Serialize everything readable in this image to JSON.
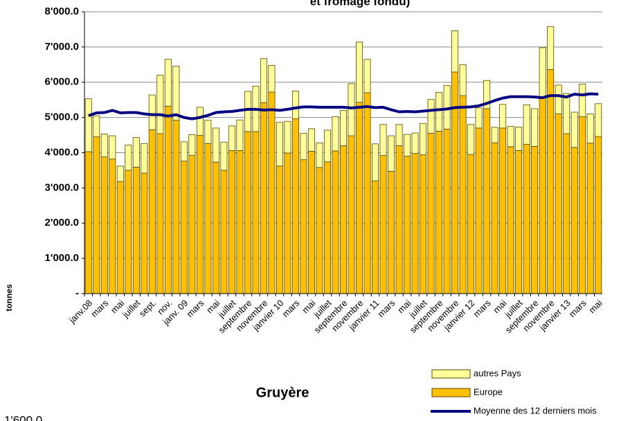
{
  "chart_data": {
    "type": "bar",
    "title": "et fromage fondu)",
    "subtitle": "Gruyère",
    "y_label": "tonnes",
    "annotation": "1'600.0",
    "stacked": true,
    "grid": true,
    "categories": [
      "janv.08",
      null,
      "mars",
      null,
      "mai",
      null,
      "juillet",
      null,
      "sept.",
      null,
      "nov.",
      null,
      "janv. 09",
      null,
      "mars",
      null,
      "mai",
      null,
      "juillet",
      null,
      "septembre",
      null,
      "novembre",
      null,
      "janvier 10",
      null,
      "mars",
      null,
      "mai",
      null,
      "juillet",
      null,
      "septembre",
      null,
      "novembre",
      null,
      "janvier 11",
      null,
      "mars",
      null,
      "mai",
      null,
      "juillet",
      null,
      "septembre",
      null,
      "novembre",
      null,
      "janvier 12",
      null,
      "mars",
      null,
      "mai",
      null,
      "juillet",
      null,
      "septembre",
      null,
      "novembre",
      null,
      "janvier 13",
      null,
      "mars",
      null,
      "mai"
    ],
    "series": [
      {
        "name": "Europe",
        "color": "#FFC000",
        "type": "bar",
        "values": [
          4030,
          4450,
          3880,
          3820,
          3180,
          3500,
          3590,
          3420,
          4650,
          4540,
          5320,
          4920,
          3760,
          3920,
          4490,
          4260,
          3730,
          3500,
          4060,
          4060,
          4600,
          4600,
          5420,
          5720,
          3620,
          3990,
          4960,
          3800,
          4040,
          3580,
          3740,
          4050,
          4200,
          4480,
          5430,
          5700,
          3200,
          3920,
          3470,
          4200,
          3900,
          3980,
          3940,
          4550,
          4610,
          4670,
          6290,
          5620,
          3950,
          4700,
          5250,
          4280,
          4700,
          4170,
          4060,
          4240,
          4180,
          5580,
          6360,
          5100,
          4540,
          4150,
          5020,
          4270,
          4460
        ]
      },
      {
        "name": "autres Pays",
        "color": "#FFFF99",
        "type": "bar",
        "values": [
          1500,
          600,
          650,
          660,
          440,
          720,
          840,
          840,
          990,
          1660,
          1330,
          1540,
          550,
          590,
          800,
          660,
          970,
          800,
          700,
          870,
          1140,
          1290,
          1250,
          760,
          1240,
          900,
          790,
          750,
          640,
          700,
          900,
          970,
          1000,
          1480,
          1710,
          950,
          1050,
          880,
          1010,
          600,
          620,
          580,
          890,
          960,
          1100,
          1240,
          1170,
          880,
          850,
          570,
          800,
          440,
          670,
          580,
          670,
          1120,
          1070,
          1400,
          1220,
          820,
          1140,
          1000,
          930,
          830,
          930
        ]
      },
      {
        "name": "Moyenne des 12 derniers mois",
        "color": "#000080",
        "type": "line",
        "values": [
          5050,
          5130,
          5140,
          5200,
          5130,
          5140,
          5140,
          5100,
          5080,
          5080,
          5040,
          5080,
          5000,
          4960,
          5000,
          5060,
          5140,
          5160,
          5170,
          5200,
          5230,
          5230,
          5210,
          5220,
          5200,
          5230,
          5270,
          5300,
          5300,
          5290,
          5290,
          5290,
          5290,
          5270,
          5290,
          5310,
          5280,
          5290,
          5220,
          5160,
          5170,
          5160,
          5180,
          5200,
          5220,
          5240,
          5280,
          5290,
          5300,
          5330,
          5400,
          5480,
          5550,
          5590,
          5590,
          5590,
          5580,
          5560,
          5620,
          5620,
          5580,
          5660,
          5640,
          5670,
          5660
        ]
      }
    ],
    "ylim": [
      0,
      8000
    ],
    "yticks": [
      {
        "value": 0,
        "label": "-"
      },
      {
        "value": 1000,
        "label": "1'000.0"
      },
      {
        "value": 2000,
        "label": "2'000.0"
      },
      {
        "value": 3000,
        "label": "3'000.0"
      },
      {
        "value": 4000,
        "label": "4'000.0"
      },
      {
        "value": 5000,
        "label": "5'000.0"
      },
      {
        "value": 6000,
        "label": "6'000.0"
      },
      {
        "value": 7000,
        "label": "7'000.0"
      },
      {
        "value": 8000,
        "label": "8'000.0"
      }
    ]
  }
}
